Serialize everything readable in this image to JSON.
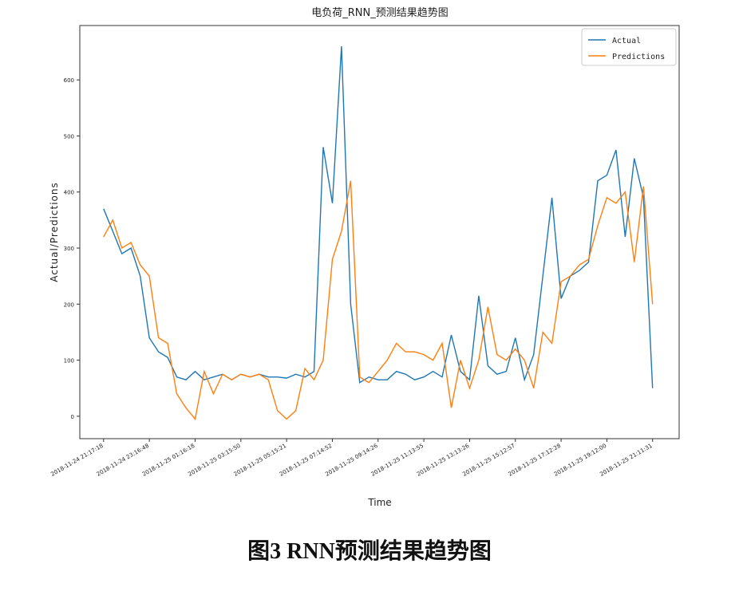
{
  "chart_data": {
    "type": "line",
    "title": "电负荷_RNN_预测结果趋势图",
    "x_label": "Time",
    "y_label": "Actual/Predictions",
    "caption": "图3 RNN预测结果趋势图",
    "ylim": [
      -40,
      697
    ],
    "yticks": [
      0,
      100,
      200,
      300,
      400,
      500,
      600
    ],
    "xlim": [
      -2.6,
      62.9
    ],
    "xticks": [
      {
        "value": 0,
        "label": "2018-11-24 21:17:18"
      },
      {
        "value": 5,
        "label": "2018-11-24 23:16:48"
      },
      {
        "value": 10,
        "label": "2018-11-25 01:16:18"
      },
      {
        "value": 15,
        "label": "2018-11-25 03:15:50"
      },
      {
        "value": 20,
        "label": "2018-11-25 05:15:21"
      },
      {
        "value": 25,
        "label": "2018-11-25 07:14:52"
      },
      {
        "value": 30,
        "label": "2018-11-25 09:14:26"
      },
      {
        "value": 35,
        "label": "2018-11-25 11:13:55"
      },
      {
        "value": 40,
        "label": "2018-11-25 13:13:26"
      },
      {
        "value": 45,
        "label": "2018-11-25 15:12:57"
      },
      {
        "value": 50,
        "label": "2018-11-25 17:12:28"
      },
      {
        "value": 55,
        "label": "2018-11-25 19:12:00"
      },
      {
        "value": 60,
        "label": "2018-11-25 21:11:31"
      }
    ],
    "legend": "upper right",
    "series": [
      {
        "name": "Actual",
        "color": "#1f77b4",
        "values": [
          370,
          330,
          290,
          300,
          250,
          140,
          115,
          105,
          70,
          65,
          80,
          65,
          70,
          75,
          65,
          75,
          70,
          75,
          70,
          70,
          68,
          75,
          70,
          80,
          480,
          380,
          660,
          200,
          60,
          70,
          65,
          65,
          80,
          75,
          65,
          70,
          80,
          70,
          145,
          80,
          65,
          215,
          90,
          75,
          80,
          140,
          65,
          110,
          250,
          390,
          210,
          250,
          260,
          275,
          420,
          430,
          475,
          320,
          460,
          390,
          50
        ]
      },
      {
        "name": "Predictions",
        "color": "#ff7f0e",
        "values": [
          320,
          350,
          300,
          310,
          270,
          250,
          140,
          130,
          40,
          15,
          -5,
          80,
          40,
          75,
          65,
          75,
          70,
          75,
          65,
          10,
          -5,
          10,
          85,
          65,
          100,
          280,
          330,
          420,
          70,
          60,
          80,
          100,
          130,
          115,
          115,
          110,
          100,
          130,
          15,
          100,
          50,
          100,
          195,
          110,
          100,
          120,
          100,
          50,
          150,
          130,
          240,
          250,
          270,
          280,
          340,
          390,
          380,
          400,
          275,
          410,
          200
        ]
      }
    ]
  }
}
